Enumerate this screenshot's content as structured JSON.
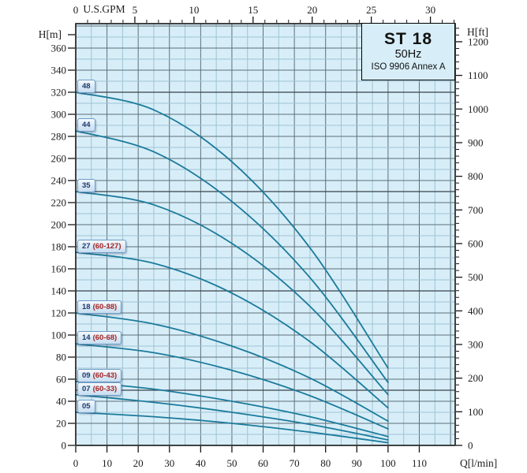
{
  "title_box": {
    "model": "ST 18",
    "frequency": "50Hz",
    "standard": "ISO 9906 Annex A"
  },
  "axes": {
    "left": {
      "label": "H[m]",
      "unit": "m",
      "ticks": [
        0,
        20,
        40,
        60,
        80,
        100,
        120,
        140,
        160,
        180,
        200,
        220,
        240,
        260,
        280,
        300,
        320,
        340,
        360
      ],
      "minor_step_m": 10
    },
    "right": {
      "label": "H[ft]",
      "unit": "ft",
      "ticks": [
        0,
        100,
        200,
        300,
        400,
        500,
        600,
        700,
        800,
        900,
        1000,
        1100,
        1200
      ],
      "minor_step_ft": 20
    },
    "bottom": {
      "label": "Q[l/min]",
      "unit": "l/min",
      "ticks": [
        0,
        10,
        20,
        30,
        40,
        50,
        60,
        70,
        80,
        90,
        100,
        110
      ]
    },
    "top": {
      "label": "U.S.GPM",
      "unit": "US gpm",
      "ticks": [
        0,
        5,
        10,
        15,
        20,
        25,
        30
      ],
      "minor_step_gpm": 1
    }
  },
  "chart_data": {
    "type": "line",
    "title": "ST 18",
    "subtitle": "50Hz",
    "note": "ISO 9906 Annex A",
    "xlabel": "Q[l/min]",
    "xlabel_top": "U.S.GPM",
    "ylabel": "H[m]",
    "ylabel_right": "H[ft]",
    "x_range_lmin": [
      0,
      121.5
    ],
    "y_range_m": [
      0,
      382
    ],
    "grid": "on",
    "curve_labels_position": "badges at left edge above each curve start",
    "series": [
      {
        "label": "48",
        "range": null,
        "points_q_lmin_h_m": [
          [
            0,
            320
          ],
          [
            25,
            304
          ],
          [
            50,
            257
          ],
          [
            75,
            179
          ],
          [
            100,
            70
          ]
        ]
      },
      {
        "label": "44",
        "range": null,
        "points_q_lmin_h_m": [
          [
            0,
            285
          ],
          [
            25,
            266
          ],
          [
            50,
            221
          ],
          [
            75,
            152
          ],
          [
            100,
            57
          ]
        ]
      },
      {
        "label": "35",
        "range": null,
        "points_q_lmin_h_m": [
          [
            0,
            230
          ],
          [
            25,
            218
          ],
          [
            50,
            183
          ],
          [
            75,
            126
          ],
          [
            100,
            46
          ]
        ]
      },
      {
        "label": "27",
        "range": "(60-127)",
        "points_q_lmin_h_m": [
          [
            0,
            175
          ],
          [
            25,
            165
          ],
          [
            50,
            138
          ],
          [
            75,
            94
          ],
          [
            100,
            34
          ]
        ]
      },
      {
        "label": "18",
        "range": "(60-88)",
        "points_q_lmin_h_m": [
          [
            0,
            120
          ],
          [
            25,
            110
          ],
          [
            50,
            90
          ],
          [
            75,
            61
          ],
          [
            100,
            22
          ]
        ]
      },
      {
        "label": "14",
        "range": "(60-68)",
        "points_q_lmin_h_m": [
          [
            0,
            92
          ],
          [
            25,
            84
          ],
          [
            50,
            68
          ],
          [
            75,
            45
          ],
          [
            100,
            15
          ]
        ]
      },
      {
        "label": "09",
        "range": "(60-43)",
        "points_q_lmin_h_m": [
          [
            0,
            58
          ],
          [
            25,
            51
          ],
          [
            50,
            40
          ],
          [
            75,
            26
          ],
          [
            100,
            8
          ]
        ]
      },
      {
        "label": "07",
        "range": "(60-33)",
        "points_q_lmin_h_m": [
          [
            0,
            46
          ],
          [
            25,
            39
          ],
          [
            50,
            30
          ],
          [
            75,
            19
          ],
          [
            100,
            5
          ]
        ]
      },
      {
        "label": "05",
        "range": null,
        "points_q_lmin_h_m": [
          [
            0,
            30
          ],
          [
            25,
            26
          ],
          [
            50,
            20
          ],
          [
            75,
            12
          ],
          [
            100,
            2.5
          ]
        ]
      }
    ]
  },
  "colors": {
    "plot_background": "#d7eef8",
    "grid_minor": "#9fc3d4",
    "grid_major": "#5d6e79",
    "grid_dark": "#39424a",
    "frame": "#161616",
    "curve": "#1b7a9b",
    "axis_text": "#1c1c1c",
    "badge_border": "#6f9cc6",
    "badge_number_text": "#1e3a6d",
    "badge_range_text": "#a82424",
    "title_text": "#111111"
  }
}
